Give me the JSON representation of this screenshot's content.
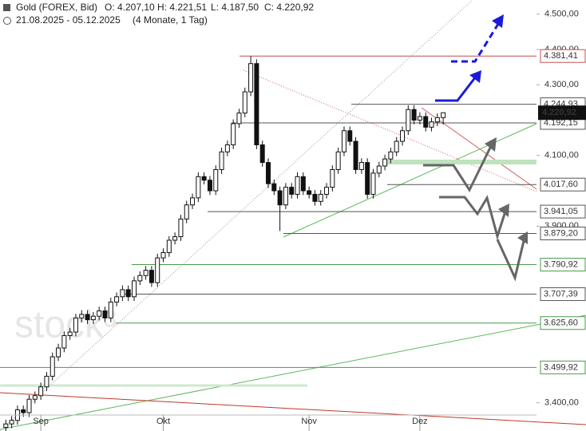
{
  "header": {
    "title": "Gold (FOREX, Bid)",
    "o": "O: 4.207,10",
    "h": "H: 4.221,51",
    "l": "L: 4.187,50",
    "c": "C: 4.220,92",
    "range": "21.08.2025 - 05.12.2025",
    "period": "(4 Monate, 1 Tag)",
    "watermark": "stock³"
  },
  "chart_data": {
    "type": "candlestick",
    "open": [
      3330,
      3340,
      3350,
      3380,
      3372,
      3410,
      3420,
      3445,
      3475,
      3530,
      3555,
      3590,
      3600,
      3640,
      3650,
      3635,
      3645,
      3660,
      3640,
      3685,
      3700,
      3720,
      3700,
      3745,
      3760,
      3775,
      3740,
      3810,
      3825,
      3860,
      3870,
      3920,
      3960,
      3980,
      4040,
      4030,
      4000,
      4060,
      4110,
      4130,
      4190,
      4220,
      4280,
      4360,
      4130,
      4080,
      4020,
      4000,
      3960,
      4010,
      3990,
      4040,
      4000,
      3990,
      3970,
      3990,
      4010,
      4060,
      4110,
      4170,
      4140,
      4060,
      4080,
      3990,
      4050,
      4070,
      4090,
      4110,
      4140,
      4170,
      4230,
      4200,
      4210,
      4180,
      4195,
      4207.1
    ],
    "high": [
      3352,
      3362,
      3392,
      3392,
      3422,
      3432,
      3457,
      3487,
      3542,
      3567,
      3602,
      3612,
      3652,
      3662,
      3662,
      3657,
      3672,
      3672,
      3697,
      3712,
      3732,
      3732,
      3757,
      3772,
      3787,
      3787,
      3822,
      3837,
      3872,
      3882,
      3932,
      3972,
      3992,
      4052,
      4052,
      4042,
      4072,
      4122,
      4142,
      4202,
      4232,
      4292,
      4381.41,
      4372,
      4142,
      4092,
      4032,
      4012,
      4022,
      4022,
      4052,
      4052,
      4012,
      4002,
      4002,
      4022,
      4072,
      4122,
      4182,
      4182,
      4152,
      4092,
      4092,
      4062,
      4082,
      4102,
      4122,
      4152,
      4182,
      4242,
      4242,
      4222,
      4222,
      4207,
      4219.1,
      4221.51
    ],
    "low": [
      3318,
      3328,
      3338,
      3360,
      3360,
      3398,
      3408,
      3433,
      3463,
      3518,
      3543,
      3578,
      3588,
      3628,
      3623,
      3623,
      3633,
      3628,
      3628,
      3673,
      3688,
      3688,
      3688,
      3733,
      3748,
      3728,
      3728,
      3798,
      3813,
      3848,
      3858,
      3908,
      3948,
      3968,
      4018,
      3988,
      3988,
      4048,
      4098,
      4118,
      4178,
      4208,
      4268,
      4118,
      4068,
      4008,
      3988,
      3886,
      3948,
      3978,
      3978,
      3988,
      3978,
      3958,
      3958,
      3978,
      3998,
      4048,
      4098,
      4128,
      4048,
      4048,
      3978,
      3978,
      4038,
      4058,
      4078,
      4098,
      4128,
      4158,
      4188,
      4188,
      4168,
      4168,
      4183,
      4187.5
    ],
    "close": [
      3340,
      3350,
      3380,
      3372,
      3410,
      3420,
      3445,
      3475,
      3530,
      3555,
      3590,
      3600,
      3640,
      3650,
      3635,
      3645,
      3660,
      3640,
      3685,
      3700,
      3720,
      3700,
      3745,
      3760,
      3775,
      3740,
      3810,
      3825,
      3860,
      3870,
      3920,
      3960,
      3980,
      4040,
      4030,
      4000,
      4060,
      4110,
      4130,
      4190,
      4220,
      4280,
      4360,
      4130,
      4080,
      4020,
      4000,
      3960,
      4010,
      3990,
      4040,
      4000,
      3990,
      3970,
      3990,
      4010,
      4060,
      4110,
      4170,
      4140,
      4060,
      4080,
      3990,
      4050,
      4070,
      4090,
      4110,
      4140,
      4170,
      4230,
      4200,
      4210,
      4180,
      4195,
      4207.1,
      4220.92
    ],
    "up_color": "#ffffff",
    "down_color": "#111111",
    "xlim": [
      -1,
      91
    ],
    "xticks": [
      {
        "value": 6,
        "label": "Sep"
      },
      {
        "value": 27,
        "label": "Okt"
      },
      {
        "value": 52,
        "label": "Nov"
      },
      {
        "value": 71,
        "label": "Dez"
      }
    ],
    "ylim": [
      3320,
      4540
    ],
    "yticks": [
      {
        "value": 4500,
        "label": "4.500,00"
      },
      {
        "value": 4400,
        "label": "4.400,00"
      },
      {
        "value": 4300,
        "label": "4.300,00"
      },
      {
        "value": 4100,
        "label": "4.100,00"
      },
      {
        "value": 3900,
        "label": "3.900,00"
      },
      {
        "value": 3400,
        "label": "3.400,00"
      }
    ],
    "last": {
      "value": 4220.92,
      "label": "4.220,92"
    },
    "levels": [
      {
        "value": 4381.41,
        "label": "4.381,41",
        "color": "#c0504d"
      },
      {
        "value": 4244.93,
        "label": "4.244,93",
        "color": "#555555"
      },
      {
        "value": 4192.15,
        "label": "4.192,15",
        "color": "#555555"
      },
      {
        "value": 4017.6,
        "label": "4.017,60",
        "color": "#555555"
      },
      {
        "value": 3941.05,
        "label": "3.941,05",
        "color": "#555555"
      },
      {
        "value": 3879.2,
        "label": "3.879,20",
        "color": "#555555"
      },
      {
        "value": 3790.92,
        "label": "3.790,92",
        "color": "#4a9a4a"
      },
      {
        "value": 3707.39,
        "label": "3.707,39",
        "color": "#555555"
      },
      {
        "value": 3625.6,
        "label": "3.625,60",
        "color": "#4a9a4a"
      },
      {
        "value": 3499.92,
        "label": "3.499,92",
        "color": "#4a9a4a"
      }
    ]
  }
}
